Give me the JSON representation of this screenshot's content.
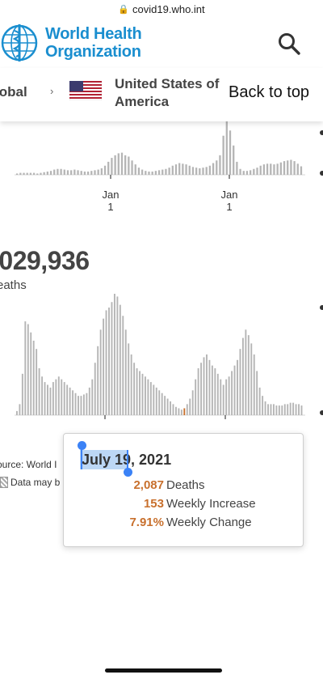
{
  "browser": {
    "url": "covid19.who.int"
  },
  "header": {
    "org_name_line1": "World Health",
    "org_name_line2": "Organization"
  },
  "breadcrumb": {
    "global_label": "lobal",
    "separator": "›",
    "country_line1": "United States of",
    "country_line2": "America",
    "back_to_top": "Back to top"
  },
  "chart_top": {
    "tick_labels": [
      {
        "month": "Jan",
        "day": "1"
      },
      {
        "month": "Jan",
        "day": "1"
      }
    ]
  },
  "deaths_panel": {
    "total": ",029,936",
    "label": "eaths"
  },
  "source": {
    "text": "ource: World I"
  },
  "disclaimer": {
    "text": "Data may b"
  },
  "tooltip": {
    "date": "July 19, 2021",
    "rows": [
      {
        "value": "2,087",
        "label": "Deaths"
      },
      {
        "value": "153",
        "label": "Weekly Increase"
      },
      {
        "value": "7.91%",
        "label": "Weekly Change"
      }
    ]
  },
  "colors": {
    "who_blue": "#1a8ecf",
    "bar_gray": "#b5b5b5",
    "highlight_bar": "#c8702d",
    "tooltip_value": "#c8702d",
    "selection": "#3b82f6"
  },
  "chart_data": [
    {
      "type": "bar",
      "description_series": "weekly cases (upper chart, partially visible)",
      "values": [
        2,
        3,
        3,
        3,
        3,
        3,
        2,
        3,
        4,
        5,
        6,
        8,
        9,
        9,
        8,
        7,
        7,
        8,
        7,
        6,
        5,
        5,
        6,
        7,
        8,
        10,
        14,
        20,
        26,
        30,
        33,
        34,
        30,
        28,
        22,
        16,
        11,
        8,
        6,
        5,
        5,
        6,
        7,
        8,
        9,
        11,
        14,
        16,
        18,
        17,
        16,
        14,
        12,
        11,
        10,
        11,
        12,
        14,
        18,
        22,
        30,
        60,
        82,
        68,
        45,
        20,
        9,
        6,
        6,
        7,
        9,
        11,
        14,
        16,
        17,
        17,
        16,
        17,
        19,
        21,
        22,
        23,
        21,
        17,
        13
      ]
    },
    {
      "type": "bar",
      "description_series": "weekly deaths (lower chart)",
      "values": [
        3,
        8,
        30,
        68,
        66,
        60,
        54,
        48,
        34,
        28,
        24,
        22,
        20,
        24,
        26,
        28,
        26,
        24,
        22,
        20,
        18,
        16,
        14,
        14,
        15,
        16,
        20,
        26,
        38,
        50,
        62,
        70,
        76,
        78,
        82,
        88,
        86,
        80,
        72,
        62,
        52,
        44,
        38,
        34,
        32,
        30,
        28,
        26,
        24,
        22,
        20,
        18,
        16,
        14,
        12,
        10,
        8,
        6,
        5,
        4,
        5,
        8,
        12,
        18,
        26,
        34,
        38,
        42,
        44,
        40,
        36,
        34,
        30,
        26,
        22,
        26,
        28,
        32,
        36,
        40,
        48,
        56,
        62,
        58,
        52,
        44,
        32,
        20,
        14,
        10,
        8,
        8,
        8,
        7,
        7,
        7,
        8,
        8,
        9,
        9,
        8,
        8,
        7
      ],
      "highlight_index": 60
    }
  ]
}
